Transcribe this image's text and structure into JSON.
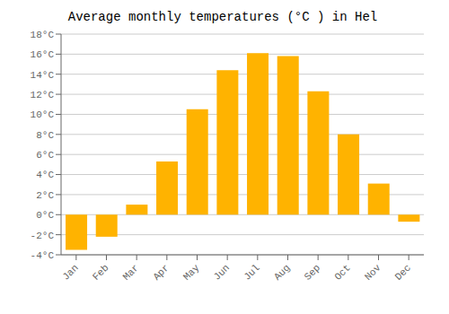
{
  "chart_data": {
    "type": "bar",
    "title": "Average monthly temperatures (°C ) in Hel",
    "categories": [
      "Jan",
      "Feb",
      "Mar",
      "Apr",
      "May",
      "Jun",
      "Jul",
      "Aug",
      "Sep",
      "Oct",
      "Nov",
      "Dec"
    ],
    "values": [
      -3.5,
      -2.2,
      1.0,
      5.3,
      10.5,
      14.4,
      16.1,
      15.8,
      12.3,
      8.0,
      3.1,
      -0.7
    ],
    "color": "#FFB300",
    "ylim": [
      -4,
      18
    ],
    "yticks": [
      {
        "value": -4,
        "label": "-4°C"
      },
      {
        "value": -2,
        "label": "-2°C"
      },
      {
        "value": 0,
        "label": "0°C"
      },
      {
        "value": 2,
        "label": "2°C"
      },
      {
        "value": 4,
        "label": "4°C"
      },
      {
        "value": 6,
        "label": "6°C"
      },
      {
        "value": 8,
        "label": "8°C"
      },
      {
        "value": 10,
        "label": "10°C"
      },
      {
        "value": 12,
        "label": "12°C"
      },
      {
        "value": 14,
        "label": "14°C"
      },
      {
        "value": 16,
        "label": "16°C"
      },
      {
        "value": 18,
        "label": "18°C"
      }
    ],
    "grid": true
  }
}
